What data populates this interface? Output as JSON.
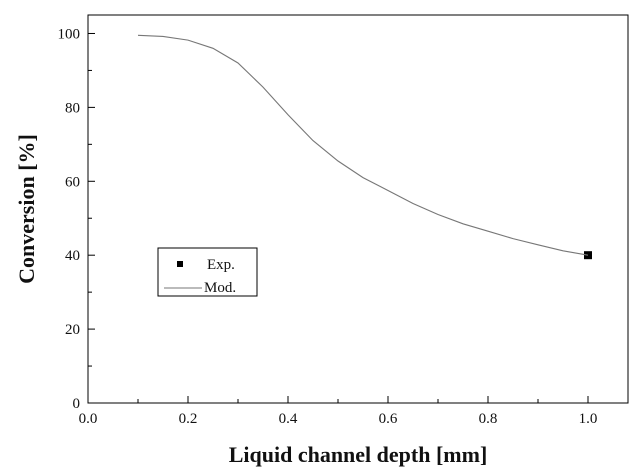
{
  "chart_data": {
    "type": "line",
    "title": "",
    "xlabel": "Liquid channel depth [mm]",
    "ylabel": "Conversion [%]",
    "xlim": [
      0.0,
      1.08
    ],
    "ylim": [
      0,
      105
    ],
    "xticks": [
      "0.0",
      "0.2",
      "0.4",
      "0.6",
      "0.8",
      "1.0"
    ],
    "yticks": [
      "0",
      "20",
      "40",
      "60",
      "80",
      "100"
    ],
    "grid": false,
    "legend": {
      "placement": "left",
      "entries": [
        {
          "label": "Exp.",
          "marker": "square"
        },
        {
          "label": "Mod.",
          "marker": "line"
        }
      ]
    },
    "series": [
      {
        "name": "Exp.",
        "kind": "scatter",
        "x": [
          1.0
        ],
        "y": [
          40
        ]
      },
      {
        "name": "Mod.",
        "kind": "line",
        "x": [
          0.1,
          0.15,
          0.2,
          0.25,
          0.3,
          0.35,
          0.4,
          0.45,
          0.5,
          0.55,
          0.6,
          0.65,
          0.7,
          0.75,
          0.8,
          0.85,
          0.9,
          0.95,
          1.0
        ],
        "y": [
          99.5,
          99.2,
          98.2,
          96.0,
          92.0,
          85.5,
          78.0,
          71.0,
          65.5,
          61.0,
          57.5,
          54.0,
          51.0,
          48.5,
          46.5,
          44.5,
          42.8,
          41.2,
          40.0
        ]
      }
    ],
    "colors": {
      "line": "#777777",
      "marker": "#000000",
      "axis": "#000000"
    }
  }
}
